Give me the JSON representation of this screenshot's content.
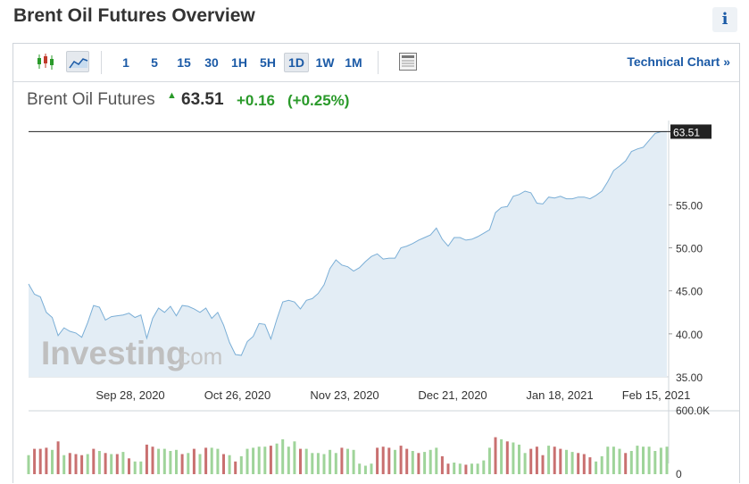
{
  "page": {
    "title": "Brent Oil Futures Overview",
    "info_icon": "i"
  },
  "toolbar": {
    "timeframes": [
      "1",
      "5",
      "15",
      "30",
      "1H",
      "5H",
      "1D",
      "1W",
      "1M"
    ],
    "active_timeframe": "1D",
    "technical_chart_label": "Technical Chart »",
    "icons": [
      "candlestick-icon",
      "area-chart-icon",
      "news-panel-icon"
    ]
  },
  "quote": {
    "name": "Brent Oil Futures",
    "price": "63.51",
    "change": "+0.16",
    "change_pct": "(+0.25%)",
    "direction": "up"
  },
  "colors": {
    "line": "#7aaed6",
    "area": "#e3edf5",
    "up": "#2a9a2a",
    "volume_up": "#9fd49a",
    "volume_down": "#c97070",
    "link": "#1b5aa6"
  },
  "watermark": {
    "brand": "Investing",
    "domain": ".com"
  },
  "chart_data": {
    "type": "area",
    "title": "Brent Oil Futures",
    "x_tick_labels": [
      "Sep 28, 2020",
      "Oct 26, 2020",
      "Nov 23, 2020",
      "Dec 21, 2020",
      "Jan 18, 2021",
      "Feb 15, 2021"
    ],
    "y_tick_labels": [
      "40.00",
      "45.00",
      "50.00",
      "55.00"
    ],
    "y_bottom_label": "35.00",
    "ylim": [
      35,
      64.8
    ],
    "last_price_label": "63.51",
    "grid": false,
    "price_series": [
      45.8,
      44.6,
      44.3,
      42.5,
      41.9,
      39.8,
      40.7,
      40.3,
      40.1,
      39.6,
      41.3,
      43.3,
      43.1,
      41.6,
      42.0,
      42.1,
      42.2,
      42.4,
      41.9,
      42.2,
      39.5,
      41.8,
      43.0,
      42.5,
      43.2,
      42.1,
      43.3,
      43.2,
      42.9,
      42.5,
      43.0,
      41.8,
      42.5,
      41.0,
      39.0,
      37.6,
      37.5,
      39.1,
      39.7,
      41.2,
      41.1,
      39.4,
      41.7,
      43.7,
      43.9,
      43.7,
      42.9,
      43.9,
      44.1,
      44.7,
      45.7,
      47.6,
      48.6,
      48.0,
      47.8,
      47.3,
      47.7,
      48.4,
      49.0,
      49.3,
      48.7,
      48.8,
      48.8,
      50.0,
      50.2,
      50.5,
      50.9,
      51.2,
      51.5,
      52.3,
      51.0,
      50.2,
      51.2,
      51.2,
      50.9,
      51.0,
      51.3,
      51.7,
      52.1,
      54.1,
      54.7,
      54.8,
      56.0,
      56.2,
      56.6,
      56.4,
      55.2,
      55.1,
      55.9,
      55.8,
      56.0,
      55.7,
      55.7,
      55.9,
      55.9,
      55.7,
      56.1,
      56.6,
      57.7,
      59.0,
      59.5,
      60.1,
      61.2,
      61.5,
      61.7,
      62.5,
      63.3,
      63.5,
      63.51
    ],
    "volume_ylim": [
      0,
      600000
    ],
    "volume_y_tick_labels": [
      "600.0K",
      "0"
    ],
    "volume_series": [
      180000,
      240000,
      240000,
      250000,
      230000,
      310000,
      180000,
      200000,
      190000,
      180000,
      190000,
      240000,
      220000,
      200000,
      190000,
      190000,
      210000,
      150000,
      120000,
      120000,
      280000,
      260000,
      240000,
      240000,
      220000,
      230000,
      190000,
      200000,
      240000,
      190000,
      250000,
      250000,
      240000,
      190000,
      180000,
      120000,
      170000,
      240000,
      250000,
      260000,
      260000,
      270000,
      290000,
      330000,
      260000,
      310000,
      240000,
      240000,
      200000,
      200000,
      190000,
      230000,
      200000,
      250000,
      240000,
      230000,
      100000,
      80000,
      100000,
      250000,
      260000,
      250000,
      230000,
      270000,
      240000,
      220000,
      200000,
      210000,
      230000,
      250000,
      170000,
      100000,
      110000,
      100000,
      90000,
      100000,
      100000,
      130000,
      250000,
      350000,
      330000,
      310000,
      300000,
      280000,
      200000,
      240000,
      260000,
      180000,
      270000,
      260000,
      240000,
      230000,
      210000,
      200000,
      190000,
      160000,
      120000,
      170000,
      260000,
      260000,
      240000,
      200000,
      220000,
      270000,
      260000,
      260000,
      220000,
      250000,
      260000
    ],
    "volume_colors": [
      "up",
      "down",
      "down",
      "down",
      "up",
      "down",
      "up",
      "down",
      "down",
      "down",
      "up",
      "down",
      "up",
      "down",
      "up",
      "down",
      "up",
      "down",
      "up",
      "up",
      "down",
      "down",
      "up",
      "up",
      "up",
      "up",
      "down",
      "up",
      "down",
      "up",
      "down",
      "up",
      "up",
      "down",
      "up",
      "down",
      "up",
      "up",
      "up",
      "up",
      "up",
      "down",
      "up",
      "up",
      "up",
      "up",
      "down",
      "up",
      "up",
      "up",
      "up",
      "up",
      "up",
      "down",
      "up",
      "up",
      "up",
      "up",
      "up",
      "down",
      "down",
      "down",
      "up",
      "down",
      "down",
      "up",
      "down",
      "up",
      "up",
      "up",
      "down",
      "down",
      "up",
      "up",
      "down",
      "up",
      "up",
      "up",
      "up",
      "down",
      "up",
      "down",
      "up",
      "up",
      "up",
      "down",
      "down",
      "down",
      "up",
      "down",
      "down",
      "up",
      "up",
      "down",
      "down",
      "down",
      "up",
      "up",
      "up",
      "up",
      "up",
      "down",
      "up",
      "up",
      "up",
      "up",
      "up",
      "up",
      "up"
    ]
  }
}
